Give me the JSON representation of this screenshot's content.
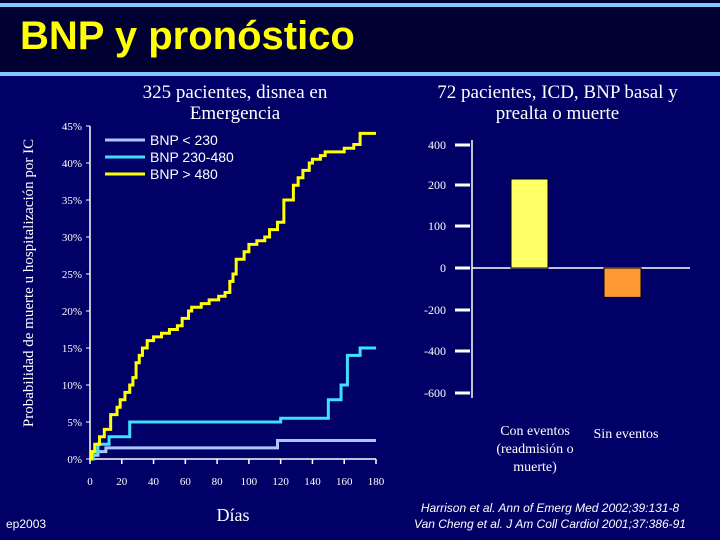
{
  "title": "BNP y pronóstico",
  "left_panel_title": "325 pacientes, disnea en Emergencia",
  "right_panel_title": "72 pacientes, ICD, BNP basal y prealta o muerte",
  "y_axis_label": "Probabilidad de muerte u hospitalización por IC",
  "x_axis_label": "Días",
  "footer_left": "ep2003",
  "references": [
    "Harrison et al. Ann of Emerg Med 2002;39:131-8",
    "Van Cheng et al. J Am Coll Cardiol 2001;37:386-91"
  ],
  "colors": {
    "background": "#000066",
    "title": "#ffff00",
    "series_low": "#aac8ff",
    "series_mid": "#40e0ff",
    "series_high": "#ffff00",
    "bar_1": "#ffff66",
    "bar_2": "#ff9933"
  },
  "chart_data": [
    {
      "type": "line",
      "step": true,
      "xlabel": "Días",
      "ylabel": "Probabilidad de muerte u hospitalización por IC",
      "xlim": [
        0,
        180
      ],
      "ylim": [
        0,
        45
      ],
      "x_ticks": [
        "0",
        "20",
        "40",
        "60",
        "80",
        "100",
        "120",
        "140",
        "160",
        "180"
      ],
      "y_ticks": [
        "0%",
        "5%",
        "10%",
        "15%",
        "20%",
        "25%",
        "30%",
        "35%",
        "40%",
        "45%"
      ],
      "legend_position": "top-left",
      "series": [
        {
          "name": "BNP < 230",
          "color": "#aac8ff",
          "points": [
            [
              0,
              0
            ],
            [
              2,
              0.5
            ],
            [
              5,
              1
            ],
            [
              10,
              1.5
            ],
            [
              60,
              1.5
            ],
            [
              118,
              2.5
            ],
            [
              180,
              2.5
            ]
          ]
        },
        {
          "name": "BNP 230-480",
          "color": "#40e0ff",
          "points": [
            [
              0,
              0
            ],
            [
              2,
              1
            ],
            [
              5,
              2
            ],
            [
              12,
              3
            ],
            [
              25,
              5
            ],
            [
              50,
              5
            ],
            [
              120,
              5.5
            ],
            [
              150,
              8
            ],
            [
              158,
              10
            ],
            [
              162,
              14
            ],
            [
              170,
              15
            ],
            [
              180,
              15
            ]
          ]
        },
        {
          "name": "BNP > 480",
          "color": "#ffff00",
          "points": [
            [
              0,
              0
            ],
            [
              1,
              1
            ],
            [
              3,
              2
            ],
            [
              6,
              3
            ],
            [
              9,
              4
            ],
            [
              13,
              6
            ],
            [
              17,
              7
            ],
            [
              19,
              8
            ],
            [
              22,
              9
            ],
            [
              25,
              10
            ],
            [
              27,
              11
            ],
            [
              29,
              13
            ],
            [
              31,
              14
            ],
            [
              33,
              15
            ],
            [
              36,
              16
            ],
            [
              40,
              16.5
            ],
            [
              45,
              17
            ],
            [
              50,
              17.5
            ],
            [
              55,
              18
            ],
            [
              58,
              19
            ],
            [
              62,
              20
            ],
            [
              64,
              20.5
            ],
            [
              70,
              21
            ],
            [
              75,
              21.5
            ],
            [
              81,
              22
            ],
            [
              85,
              22.5
            ],
            [
              88,
              24
            ],
            [
              90,
              25
            ],
            [
              92,
              27
            ],
            [
              97,
              28
            ],
            [
              100,
              29
            ],
            [
              105,
              29.5
            ],
            [
              110,
              30
            ],
            [
              113,
              31
            ],
            [
              118,
              32
            ],
            [
              122,
              35
            ],
            [
              128,
              37
            ],
            [
              131,
              38
            ],
            [
              134,
              39
            ],
            [
              138,
              40
            ],
            [
              140,
              40.5
            ],
            [
              145,
              41
            ],
            [
              148,
              41.5
            ],
            [
              152,
              41.5
            ],
            [
              160,
              42
            ],
            [
              166,
              42.5
            ],
            [
              170,
              44
            ],
            [
              180,
              44
            ]
          ]
        }
      ]
    },
    {
      "type": "bar",
      "categories": [
        "Con eventos (readmisión o muerte)",
        "Sin eventos"
      ],
      "values": [
        230,
        -140
      ],
      "ylim": [
        -600,
        400
      ],
      "y_ticks": [
        "400",
        "200",
        "100",
        "0",
        "-200",
        "-400",
        "-600"
      ],
      "colors": [
        "#ffff66",
        "#ff9933"
      ]
    }
  ]
}
